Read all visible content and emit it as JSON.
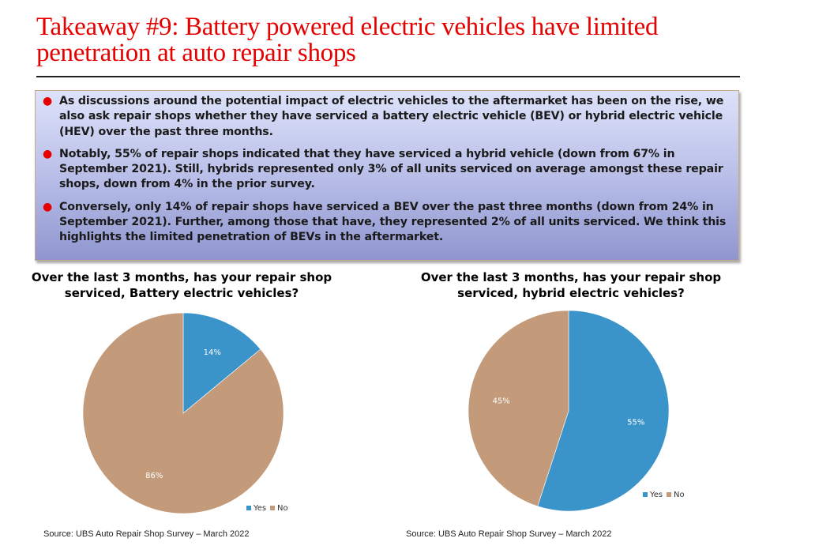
{
  "title": {
    "line1": "Takeaway #9: Battery powered electric vehicles have limited",
    "line2": "penetration at auto repair shops"
  },
  "bullets": [
    "As discussions around the potential impact of electric vehicles to the aftermarket has been on the rise, we also ask repair shops whether they have serviced a battery electric vehicle (BEV) or hybrid electric vehicle (HEV) over the past three months.",
    "Notably, 55% of repair shops indicated that they have serviced a hybrid vehicle (down from 67% in September 2021). Still, hybrids represented only 3% of all units serviced on average amongst these repair shops, down from 4% in the prior survey.",
    "Conversely, only 14% of repair shops have serviced a BEV over the past three months (down from 24% in September 2021). Further, among those that have, they represented 2% of all units serviced. We think this highlights the limited penetration of BEVs in the aftermarket."
  ],
  "colors": {
    "title": "#e60000",
    "yes": "#3a93c9",
    "no": "#c39b7a",
    "bullet_dot": "#e60000"
  },
  "chart_data": [
    {
      "type": "pie",
      "title_line1": "Over the last 3 months, has your repair shop",
      "title_line2": "serviced, Battery electric vehicles?",
      "categories": [
        "Yes",
        "No"
      ],
      "values": [
        14,
        86
      ],
      "data_labels": [
        "14%",
        "86%"
      ],
      "legend": [
        "Yes",
        "No"
      ],
      "legend_position": "bottom-right",
      "source": "Source: UBS Auto Repair Shop Survey – March 2022"
    },
    {
      "type": "pie",
      "title_line1": "Over the last 3 months, has your repair shop",
      "title_line2": "serviced, hybrid electric vehicles?",
      "categories": [
        "Yes",
        "No"
      ],
      "values": [
        55,
        45
      ],
      "data_labels": [
        "55%",
        "45%"
      ],
      "legend": [
        "Yes",
        "No"
      ],
      "legend_position": "bottom-right",
      "source": "Source: UBS Auto Repair Shop Survey – March 2022"
    }
  ]
}
